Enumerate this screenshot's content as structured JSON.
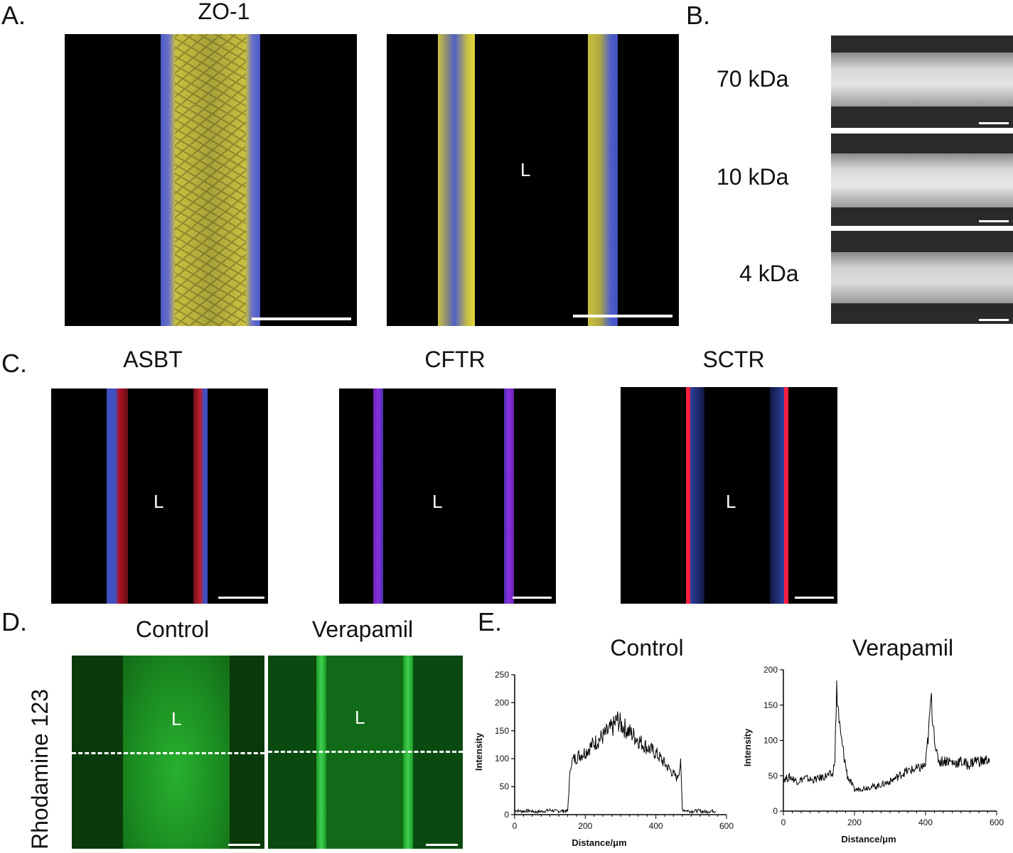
{
  "panel_labels": {
    "a": "A.",
    "b": "B.",
    "c": "C.",
    "d": "D.",
    "e": "E."
  },
  "panel_a": {
    "title": "ZO-1",
    "lumen_label": "L"
  },
  "panel_b": {
    "rows": [
      "70 kDa",
      "10 kDa",
      "4 kDa"
    ]
  },
  "panel_c": {
    "titles": [
      "ASBT",
      "CFTR",
      "SCTR"
    ],
    "lumen_label": "L"
  },
  "panel_d": {
    "titles": [
      "Control",
      "Verapamil"
    ],
    "ylabel": "Rhodamine 123",
    "lumen_label": "L"
  },
  "colors": {
    "zo1": "#d6cc3a",
    "nuclei": "#5a6be0",
    "asbt": "#e0202a",
    "cftr": "#9a2ae8",
    "sctr": "#ff2040",
    "rhodamine": "#1fbf2e",
    "trace": "#000000"
  },
  "chart_data": [
    {
      "type": "line",
      "title": "Control",
      "xlabel": "Distance/μm",
      "ylabel": "Intensity",
      "xlim": [
        0,
        600
      ],
      "ylim": [
        0,
        250
      ],
      "xticks": [
        0,
        200,
        400,
        600
      ],
      "yticks": [
        0,
        50,
        100,
        150,
        200,
        250
      ],
      "grid": false,
      "series": [
        {
          "x": [
            0,
            20,
            40,
            60,
            80,
            100,
            120,
            140,
            150,
            155,
            160,
            180,
            200,
            220,
            240,
            260,
            280,
            290,
            300,
            320,
            340,
            360,
            380,
            400,
            420,
            440,
            460,
            470,
            475,
            480,
            500,
            520,
            540,
            560,
            570
          ],
          "y": [
            8,
            6,
            7,
            5,
            6,
            8,
            6,
            7,
            6,
            60,
            95,
            105,
            112,
            125,
            135,
            145,
            158,
            170,
            162,
            150,
            140,
            128,
            118,
            110,
            95,
            80,
            65,
            90,
            10,
            8,
            6,
            7,
            5,
            7,
            6
          ]
        }
      ]
    },
    {
      "type": "line",
      "title": "Verapamil",
      "xlabel": "Distance/μm",
      "ylabel": "Intensity",
      "xlim": [
        0,
        600
      ],
      "ylim": [
        0,
        200
      ],
      "xticks": [
        0,
        200,
        400,
        600
      ],
      "yticks": [
        0,
        50,
        100,
        150,
        200
      ],
      "grid": false,
      "series": [
        {
          "x": [
            0,
            20,
            40,
            60,
            80,
            100,
            120,
            140,
            145,
            150,
            155,
            160,
            170,
            180,
            200,
            220,
            240,
            260,
            280,
            300,
            320,
            340,
            360,
            380,
            400,
            410,
            415,
            420,
            425,
            430,
            440,
            460,
            480,
            500,
            520,
            540,
            560,
            580
          ],
          "y": [
            45,
            48,
            42,
            47,
            44,
            46,
            50,
            52,
            80,
            170,
            140,
            110,
            80,
            50,
            30,
            32,
            34,
            35,
            38,
            42,
            48,
            55,
            58,
            60,
            65,
            120,
            160,
            135,
            110,
            80,
            70,
            72,
            68,
            70,
            65,
            72,
            70,
            74
          ]
        }
      ]
    }
  ]
}
